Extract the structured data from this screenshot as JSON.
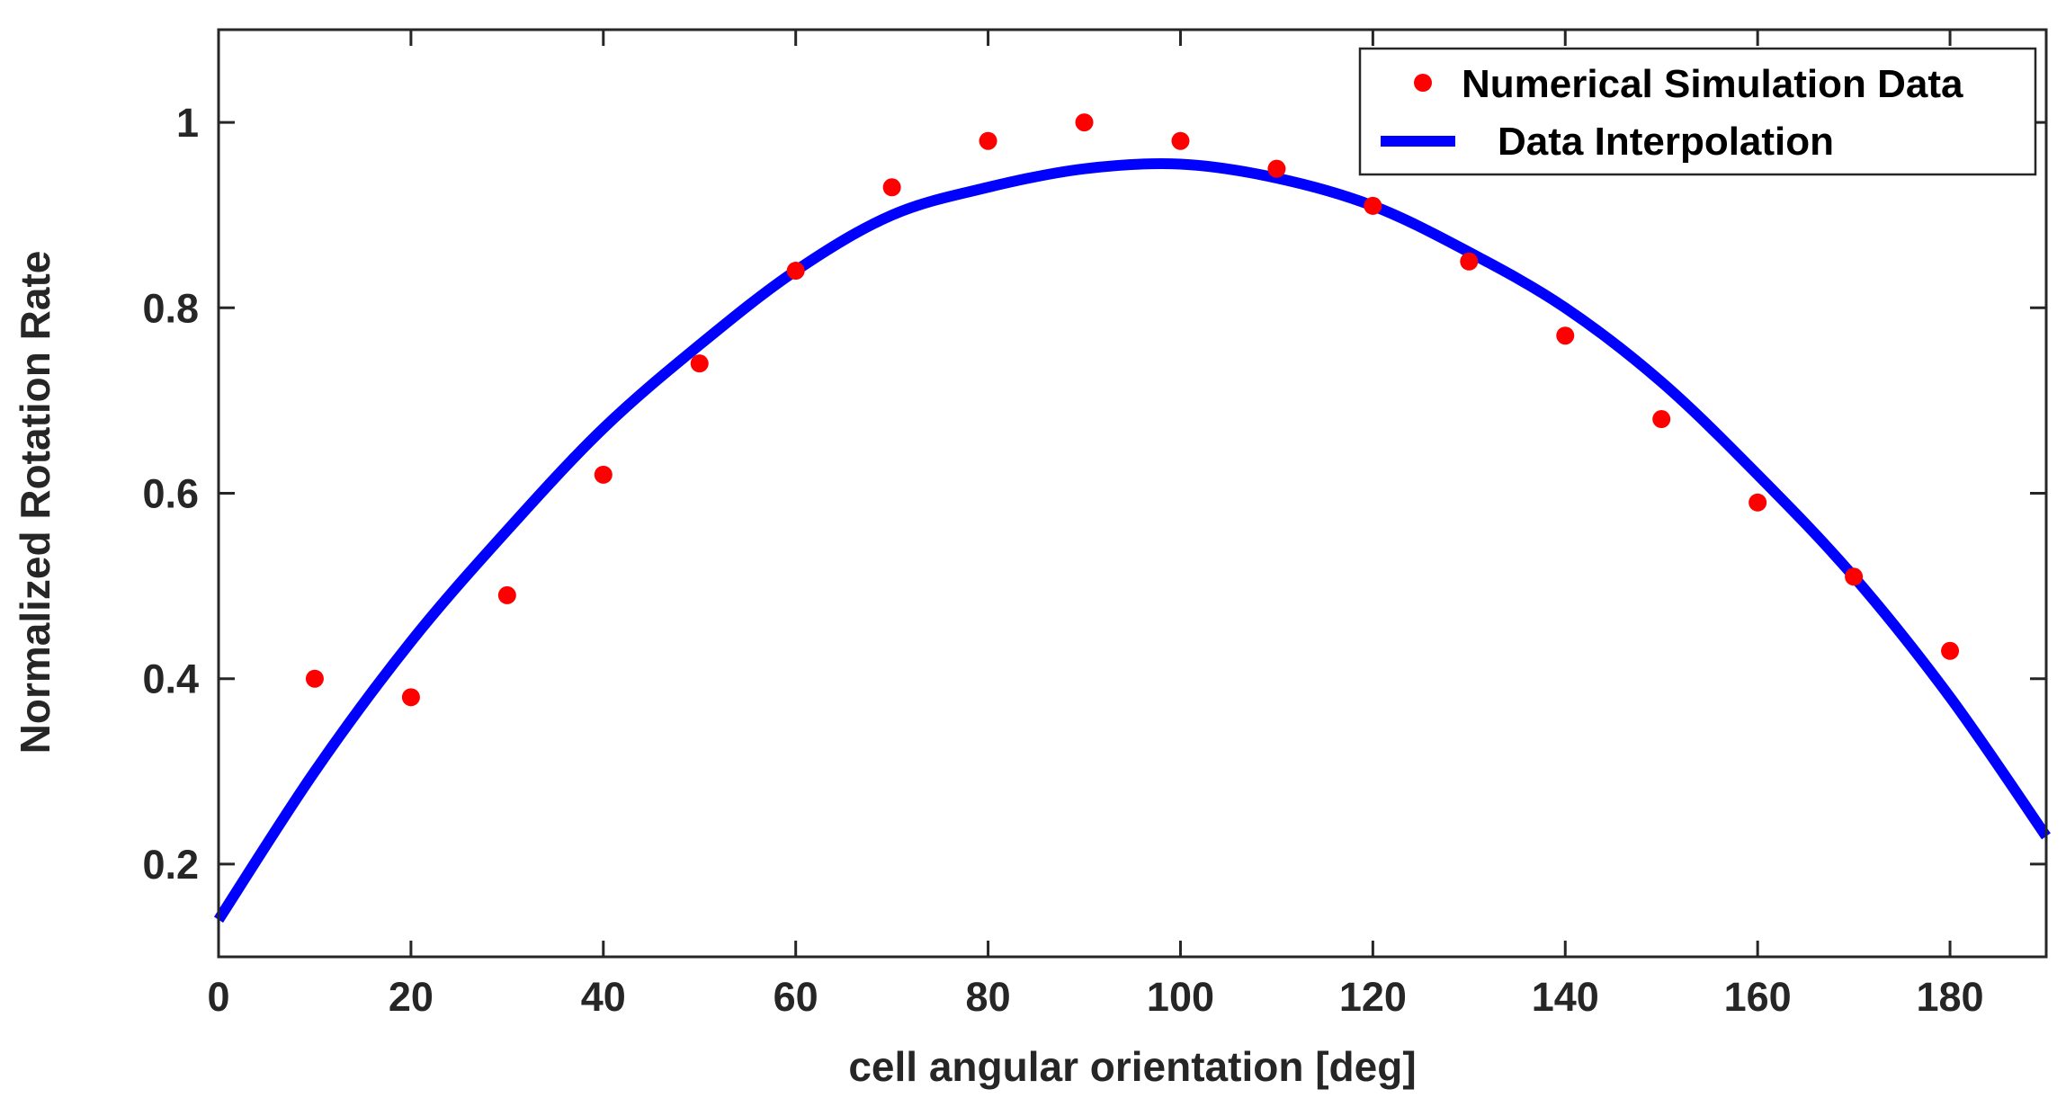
{
  "chart_data": {
    "type": "scatter",
    "title": "",
    "xlabel": "cell angular orientation [deg]",
    "ylabel": "Normalized Rotation Rate",
    "xlim": [
      0,
      190
    ],
    "ylim": [
      0.1,
      1.1
    ],
    "xticks": [
      0,
      20,
      40,
      60,
      80,
      100,
      120,
      140,
      160,
      180
    ],
    "xtick_labels": [
      "0",
      "20",
      "40",
      "60",
      "80",
      "100",
      "120",
      "140",
      "160",
      "180"
    ],
    "yticks": [
      0.2,
      0.4,
      0.6,
      0.8,
      1.0
    ],
    "ytick_labels": [
      "0.2",
      "0.4",
      "0.6",
      "0.8",
      "1"
    ],
    "grid": false,
    "legend_position": "top-right",
    "series": [
      {
        "name": "Numerical Simulation Data",
        "kind": "scatter",
        "color": "#ff0000",
        "x": [
          10,
          20,
          30,
          40,
          50,
          60,
          70,
          80,
          90,
          100,
          110,
          120,
          130,
          140,
          150,
          160,
          170,
          180
        ],
        "y": [
          0.4,
          0.38,
          0.49,
          0.62,
          0.74,
          0.84,
          0.93,
          0.98,
          1.0,
          0.98,
          0.95,
          0.91,
          0.85,
          0.77,
          0.68,
          0.59,
          0.51,
          0.43
        ]
      },
      {
        "name": "Data Interpolation",
        "kind": "line",
        "color": "#0000ff",
        "x": [
          0,
          10,
          20,
          30,
          40,
          50,
          60,
          70,
          80,
          90,
          100,
          110,
          120,
          130,
          140,
          150,
          160,
          170,
          180,
          190
        ],
        "y": [
          0.14,
          0.3,
          0.44,
          0.56,
          0.67,
          0.76,
          0.84,
          0.9,
          0.93,
          0.95,
          0.955,
          0.94,
          0.91,
          0.86,
          0.8,
          0.72,
          0.62,
          0.51,
          0.38,
          0.23
        ]
      }
    ]
  }
}
